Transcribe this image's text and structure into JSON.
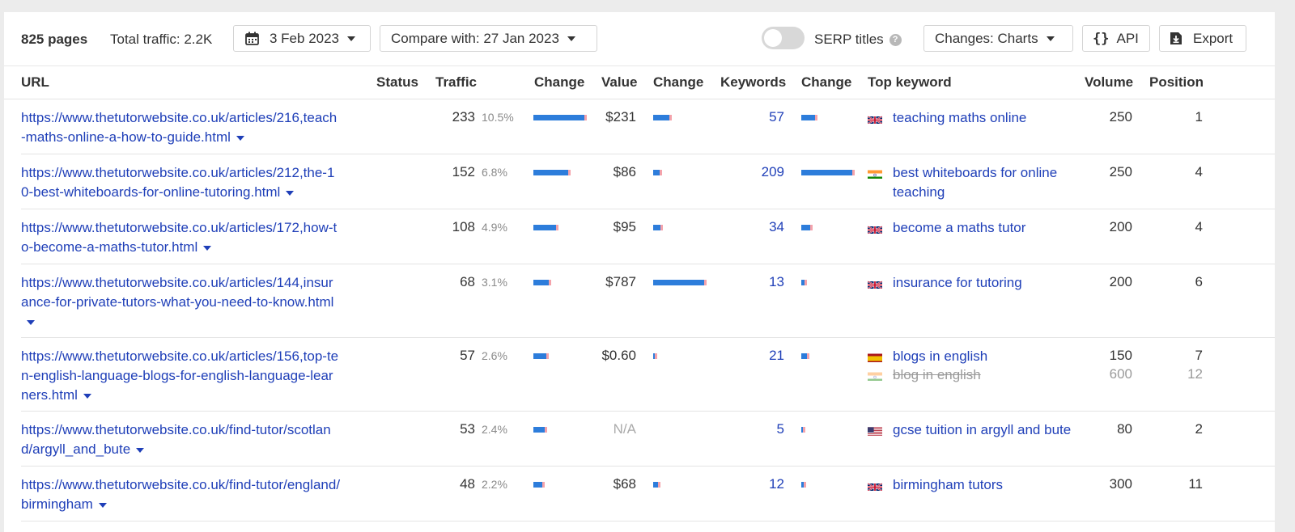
{
  "toolbar": {
    "pages": "825 pages",
    "traffic": "Total traffic: 2.2K",
    "date": "3 Feb 2023",
    "compare": "Compare with: 27 Jan 2023",
    "serp_label": "SERP titles",
    "serp_toggle_on": false,
    "changes": "Changes: Charts",
    "api": "API",
    "export": "Export"
  },
  "columns": {
    "url": "URL",
    "status": "Status",
    "traffic": "Traffic",
    "change1": "Change",
    "value": "Value",
    "change2": "Change",
    "keywords": "Keywords",
    "change3": "Change",
    "top_keyword": "Top keyword",
    "volume": "Volume",
    "position": "Position"
  },
  "rows": [
    {
      "url": "https://www.thetutorwebsite.co.uk/articles/216,teach-maths-online-a-how-to-guide.html",
      "traffic": "233",
      "pct": "10.5%",
      "value": "$231",
      "keywords": "57",
      "kw": [
        {
          "text": "teaching maths online",
          "flag": "gb",
          "volume": "250",
          "position": "1"
        }
      ]
    },
    {
      "url": "https://www.thetutorwebsite.co.uk/articles/212,the-10-best-whiteboards-for-online-tutoring.html",
      "traffic": "152",
      "pct": "6.8%",
      "value": "$86",
      "keywords": "209",
      "kw": [
        {
          "text": "best whiteboards for online teaching",
          "flag": "in",
          "volume": "250",
          "position": "4"
        }
      ]
    },
    {
      "url": "https://www.thetutorwebsite.co.uk/articles/172,how-to-become-a-maths-tutor.html",
      "traffic": "108",
      "pct": "4.9%",
      "value": "$95",
      "keywords": "34",
      "kw": [
        {
          "text": "become a maths tutor",
          "flag": "gb",
          "volume": "200",
          "position": "4"
        }
      ]
    },
    {
      "url": "https://www.thetutorwebsite.co.uk/articles/144,insurance-for-private-tutors-what-you-need-to-know.html",
      "traffic": "68",
      "pct": "3.1%",
      "value": "$787",
      "keywords": "13",
      "kw": [
        {
          "text": "insurance for tutoring",
          "flag": "gb",
          "volume": "200",
          "position": "6"
        }
      ]
    },
    {
      "url": "https://www.thetutorwebsite.co.uk/articles/156,top-ten-english-language-blogs-for-english-language-learners.html",
      "traffic": "57",
      "pct": "2.6%",
      "value": "$0.60",
      "keywords": "21",
      "kw": [
        {
          "text": "blogs in english",
          "flag": "es",
          "volume": "150",
          "position": "7"
        },
        {
          "text": "blog in english",
          "flag": "in",
          "volume": "600",
          "position": "12",
          "lost": true
        }
      ]
    },
    {
      "url": "https://www.thetutorwebsite.co.uk/find-tutor/scotland/argyll_and_bute",
      "traffic": "53",
      "pct": "2.4%",
      "value": "N/A",
      "keywords": "5",
      "kw": [
        {
          "text": "gcse tuition in argyll and bute",
          "flag": "us",
          "volume": "80",
          "position": "2"
        }
      ]
    },
    {
      "url": "https://www.thetutorwebsite.co.uk/find-tutor/england/birmingham",
      "traffic": "48",
      "pct": "2.2%",
      "value": "$68",
      "keywords": "12",
      "kw": [
        {
          "text": "birmingham tutors",
          "flag": "gb",
          "volume": "300",
          "position": "11"
        }
      ]
    }
  ],
  "change_bars": {
    "traffic": [
      1.0,
      0.68,
      0.45,
      0.3,
      0.26,
      0.22,
      0.18
    ],
    "value": [
      0.32,
      0.12,
      0.14,
      1.0,
      0.03,
      0,
      0.09
    ],
    "keywords": [
      0.27,
      1.0,
      0.17,
      0.07,
      0.11,
      0.02,
      0.05
    ]
  },
  "colors": {
    "bar": "#2d7ddb",
    "bar_tip": "#f4a3ab",
    "link": "#1f3fb8"
  }
}
